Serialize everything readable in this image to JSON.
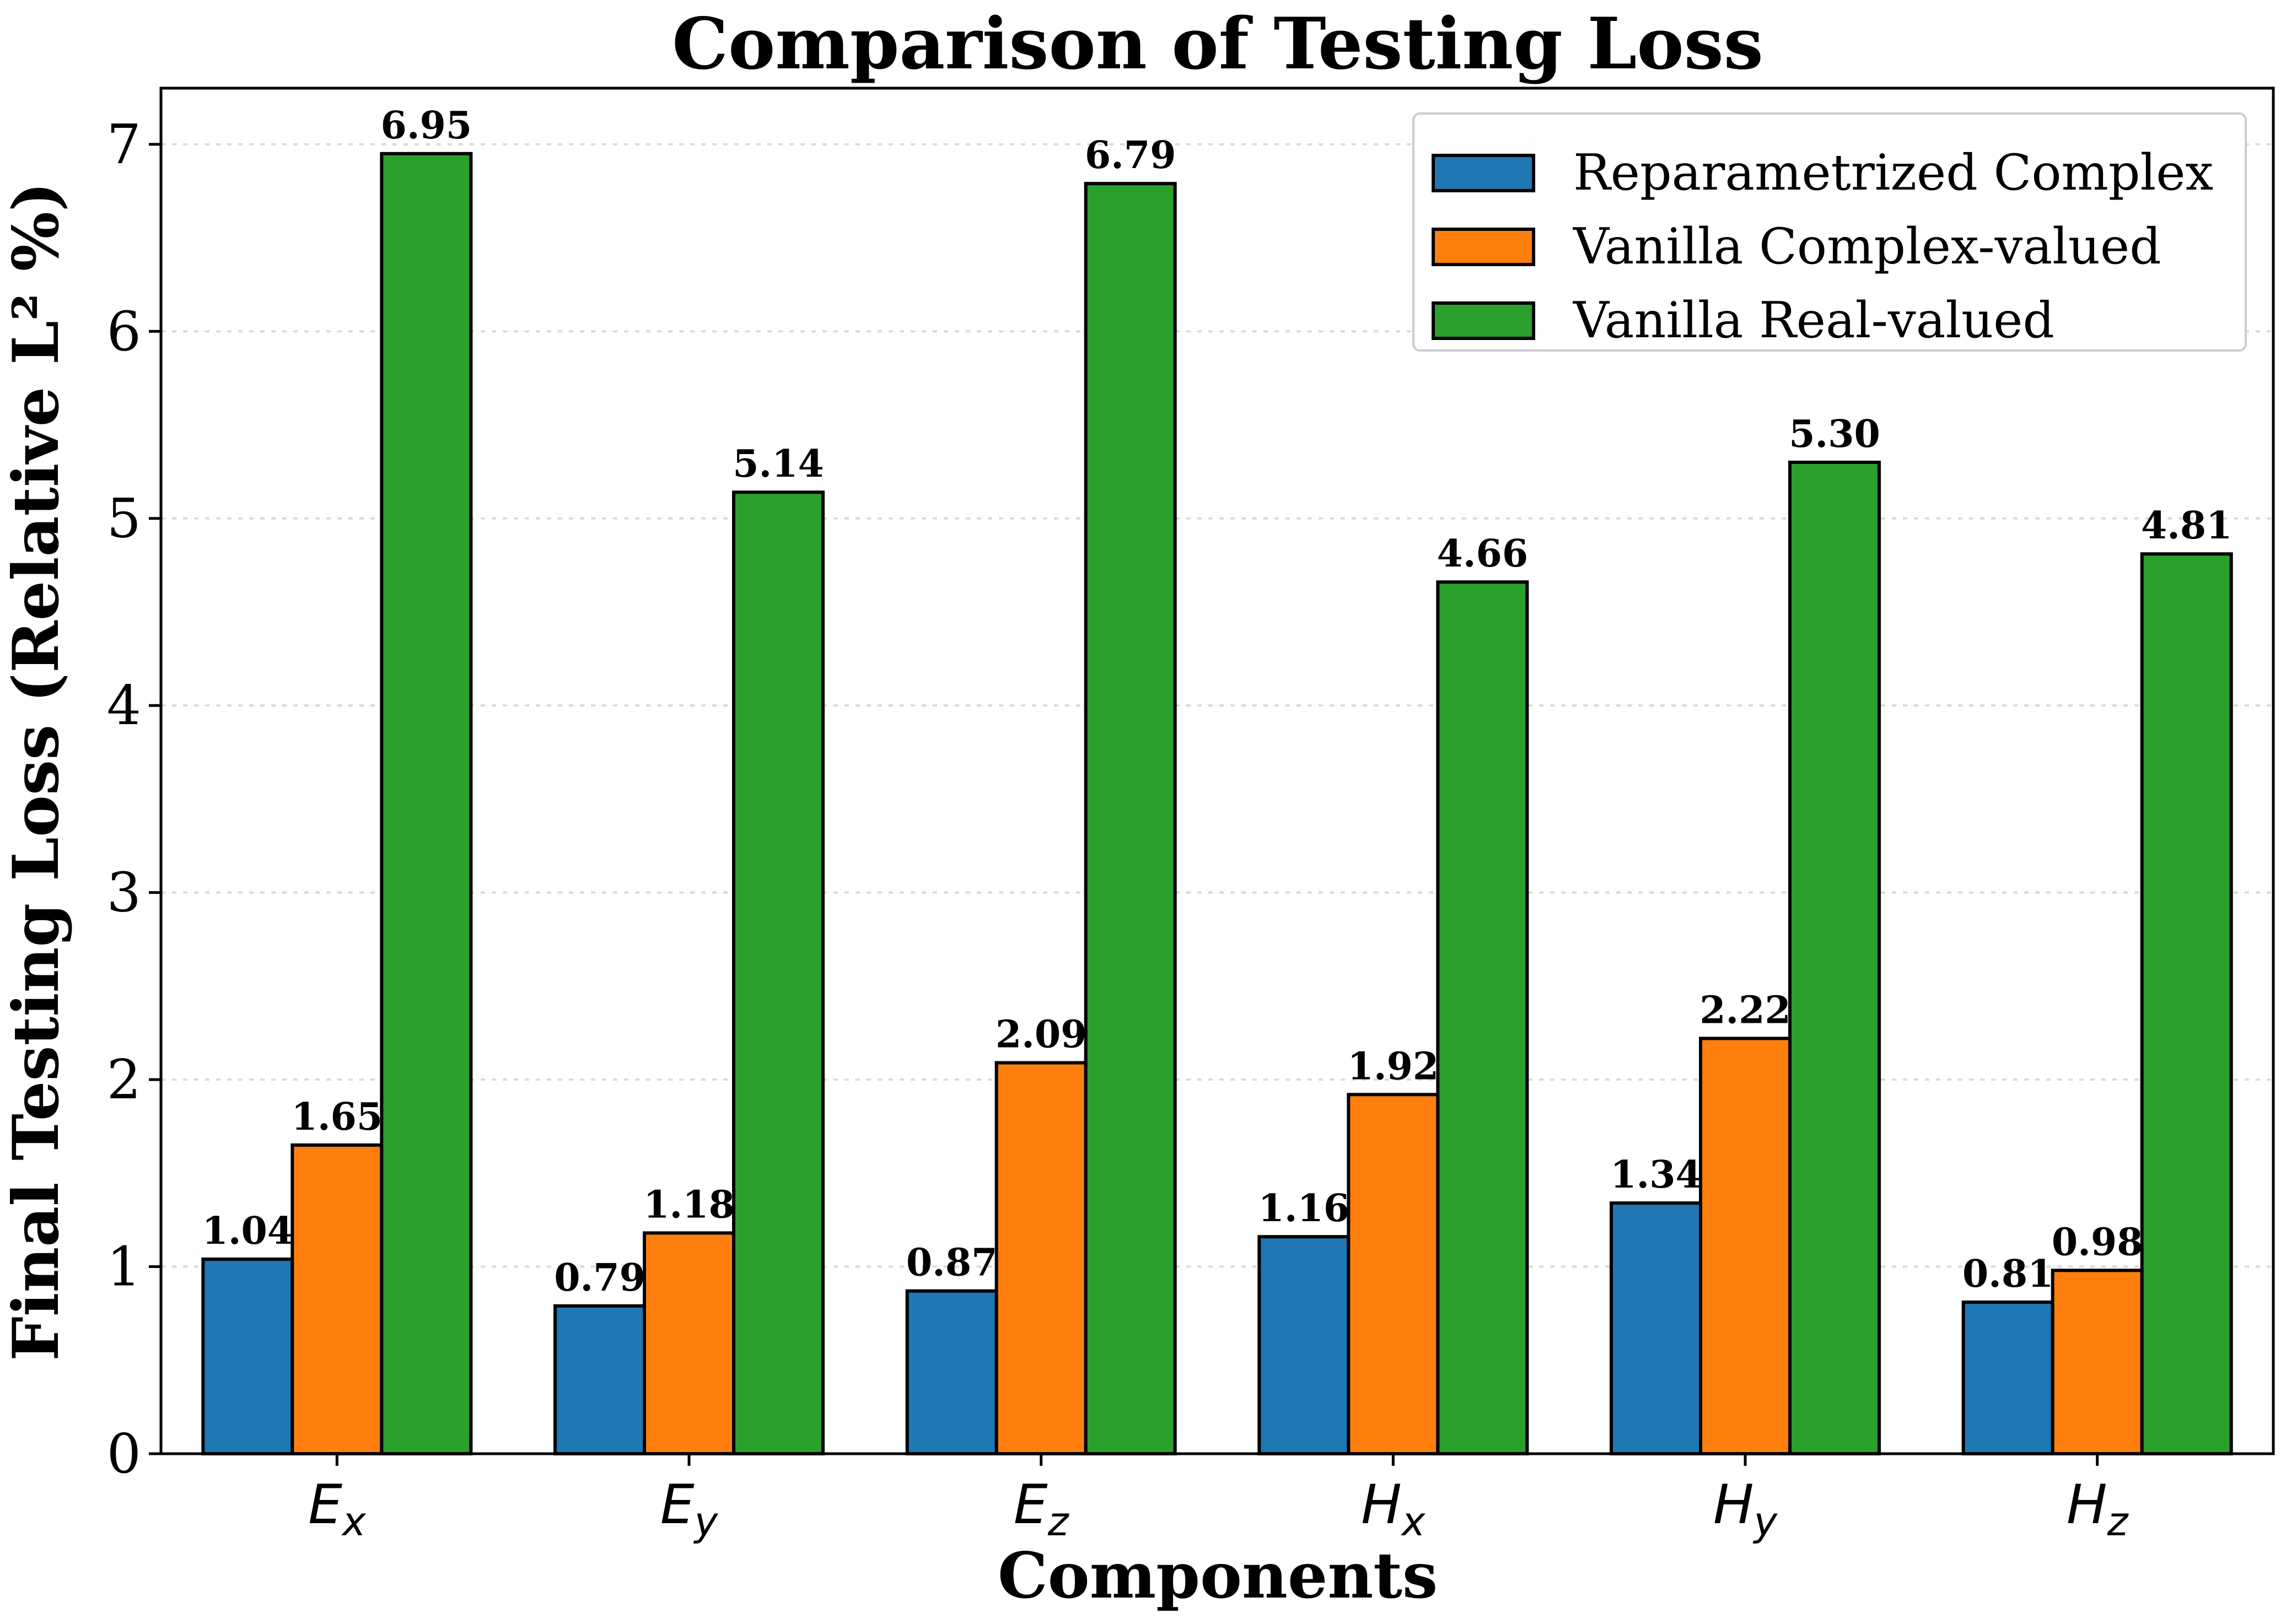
{
  "chart_data": {
    "type": "bar",
    "title": "Comparison of Testing Loss",
    "xlabel": "Components",
    "ylabel": "Final Testing Loss (Relative L² %)",
    "categories": [
      "Ex",
      "Ey",
      "Ez",
      "Hx",
      "Hy",
      "Hz"
    ],
    "category_display": [
      {
        "main": "E",
        "sub": "x"
      },
      {
        "main": "E",
        "sub": "y"
      },
      {
        "main": "E",
        "sub": "z"
      },
      {
        "main": "H",
        "sub": "x"
      },
      {
        "main": "H",
        "sub": "y"
      },
      {
        "main": "H",
        "sub": "z"
      }
    ],
    "series": [
      {
        "name": "Reparametrized Complex",
        "color": "#1f77b4",
        "values": [
          1.04,
          0.79,
          0.87,
          1.16,
          1.34,
          0.81
        ],
        "labels": [
          "1.04",
          "0.79",
          "0.87",
          "1.16",
          "1.34",
          "0.81"
        ]
      },
      {
        "name": "Vanilla Complex-valued",
        "color": "#ff7f0e",
        "values": [
          1.65,
          1.18,
          2.09,
          1.92,
          2.22,
          0.98
        ],
        "labels": [
          "1.65",
          "1.18",
          "2.09",
          "1.92",
          "2.22",
          "0.98"
        ]
      },
      {
        "name": "Vanilla Real-valued",
        "color": "#2ca02c",
        "values": [
          6.95,
          5.14,
          6.79,
          4.66,
          5.3,
          4.81
        ],
        "labels": [
          "6.95",
          "5.14",
          "6.79",
          "4.66",
          "5.30",
          "4.81"
        ]
      }
    ],
    "ylim": [
      0,
      7.3
    ],
    "yticks": [
      0,
      1,
      2,
      3,
      4,
      5,
      6,
      7
    ],
    "ytick_labels": [
      "0",
      "1",
      "2",
      "3",
      "4",
      "5",
      "6",
      "7"
    ],
    "grid": true,
    "legend_position": "top-right"
  }
}
